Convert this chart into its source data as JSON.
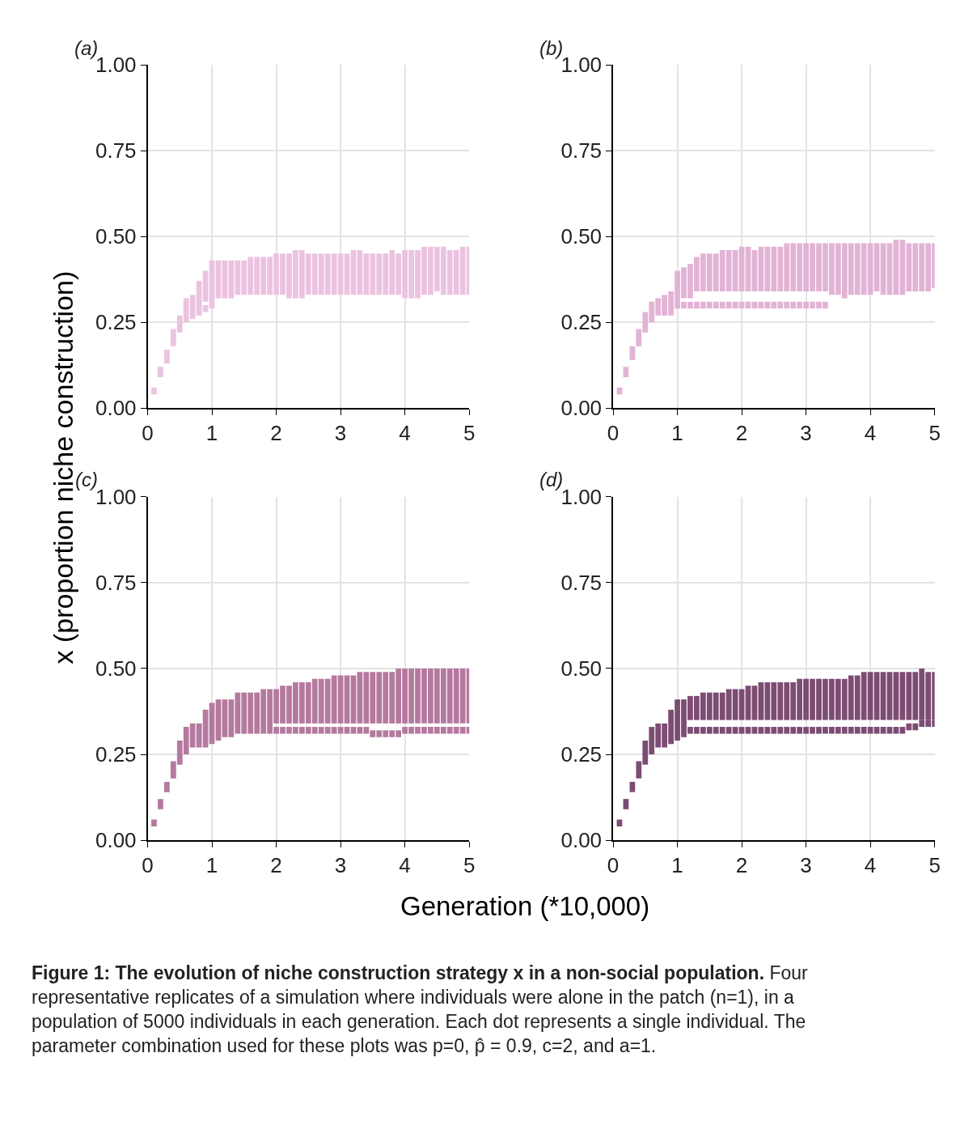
{
  "chart_data": [
    {
      "type": "bar",
      "title": "(a)",
      "ylabel": "x (proportion niche construction)",
      "x": [
        0.1,
        0.2,
        0.3,
        0.4,
        0.5,
        0.6,
        0.7,
        0.8,
        0.9,
        1.0,
        1.1,
        1.2,
        1.3,
        1.4,
        1.5,
        1.6,
        1.7,
        1.8,
        1.9,
        2.0,
        2.1,
        2.2,
        2.3,
        2.4,
        2.5,
        2.6,
        2.7,
        2.8,
        2.9,
        3.0,
        3.1,
        3.2,
        3.3,
        3.4,
        3.5,
        3.6,
        3.7,
        3.8,
        3.9,
        4.0,
        4.1,
        4.2,
        4.3,
        4.4,
        4.5,
        4.6,
        4.7,
        4.8,
        4.9,
        5.0
      ],
      "xlim": [
        0,
        5
      ],
      "xticks": [
        0,
        1,
        2,
        3,
        4,
        5
      ],
      "ylim": [
        0,
        1
      ],
      "yticks": [
        {
          "value": 0,
          "label": "0.00"
        },
        {
          "value": 0.25,
          "label": "0.25"
        },
        {
          "value": 0.5,
          "label": "0.50"
        },
        {
          "value": 0.75,
          "label": "0.75"
        },
        {
          "value": 1,
          "label": "1.00"
        }
      ],
      "grid": true,
      "series": [
        {
          "color": "#ebc3e0",
          "base": [
            0.04,
            0.09,
            0.13,
            0.18,
            0.22,
            0.25,
            0.26,
            0.27,
            0.31,
            0.31,
            0.32,
            0.32,
            0.32,
            0.33,
            0.33,
            0.33,
            0.33,
            0.33,
            0.33,
            0.33,
            0.33,
            0.32,
            0.32,
            0.32,
            0.33,
            0.33,
            0.33,
            0.33,
            0.33,
            0.33,
            0.33,
            0.33,
            0.33,
            0.33,
            0.33,
            0.33,
            0.33,
            0.33,
            0.33,
            0.32,
            0.32,
            0.32,
            0.33,
            0.33,
            0.34,
            0.33,
            0.33,
            0.33,
            0.33,
            0.33
          ],
          "values": [
            0.02,
            0.03,
            0.04,
            0.05,
            0.05,
            0.07,
            0.07,
            0.1,
            0.09,
            0.12,
            0.11,
            0.11,
            0.11,
            0.1,
            0.1,
            0.11,
            0.11,
            0.11,
            0.11,
            0.12,
            0.12,
            0.13,
            0.14,
            0.14,
            0.12,
            0.12,
            0.12,
            0.12,
            0.12,
            0.12,
            0.12,
            0.13,
            0.13,
            0.12,
            0.12,
            0.12,
            0.12,
            0.13,
            0.12,
            0.14,
            0.14,
            0.14,
            0.14,
            0.14,
            0.13,
            0.14,
            0.13,
            0.13,
            0.14,
            0.14
          ]
        },
        {
          "color": "#ebc3e0",
          "base": [
            null,
            null,
            null,
            null,
            null,
            null,
            null,
            null,
            0.28,
            0.29,
            null,
            null,
            null,
            null,
            null,
            null,
            null,
            null,
            null,
            null,
            null,
            null,
            null,
            null,
            null,
            null,
            null,
            null,
            null,
            null,
            null,
            null,
            null,
            null,
            null,
            null,
            null,
            null,
            null,
            null,
            null,
            null,
            null,
            null,
            null,
            null,
            null,
            null,
            null,
            null
          ],
          "values": [
            null,
            null,
            null,
            null,
            null,
            null,
            null,
            null,
            0.02,
            0.02,
            null,
            null,
            null,
            null,
            null,
            null,
            null,
            null,
            null,
            null,
            null,
            null,
            null,
            null,
            null,
            null,
            null,
            null,
            null,
            null,
            null,
            null,
            null,
            null,
            null,
            null,
            null,
            null,
            null,
            null,
            null,
            null,
            null,
            null,
            null,
            null,
            null,
            null,
            null,
            null
          ]
        }
      ]
    },
    {
      "type": "bar",
      "title": "(b)",
      "x": [
        0.1,
        0.2,
        0.3,
        0.4,
        0.5,
        0.6,
        0.7,
        0.8,
        0.9,
        1.0,
        1.1,
        1.2,
        1.3,
        1.4,
        1.5,
        1.6,
        1.7,
        1.8,
        1.9,
        2.0,
        2.1,
        2.2,
        2.3,
        2.4,
        2.5,
        2.6,
        2.7,
        2.8,
        2.9,
        3.0,
        3.1,
        3.2,
        3.3,
        3.4,
        3.5,
        3.6,
        3.7,
        3.8,
        3.9,
        4.0,
        4.1,
        4.2,
        4.3,
        4.4,
        4.5,
        4.6,
        4.7,
        4.8,
        4.9,
        5.0
      ],
      "xlim": [
        0,
        5
      ],
      "xticks": [
        0,
        1,
        2,
        3,
        4,
        5
      ],
      "ylim": [
        0,
        1
      ],
      "yticks": [
        {
          "value": 0,
          "label": "0.00"
        },
        {
          "value": 0.25,
          "label": "0.25"
        },
        {
          "value": 0.5,
          "label": "0.50"
        },
        {
          "value": 0.75,
          "label": "0.75"
        },
        {
          "value": 1,
          "label": "1.00"
        }
      ],
      "grid": true,
      "series": [
        {
          "color": "#e2b3d5",
          "base": [
            0.04,
            0.09,
            0.14,
            0.18,
            0.22,
            0.25,
            0.27,
            0.27,
            0.27,
            0.29,
            0.32,
            0.32,
            0.34,
            0.34,
            0.34,
            0.34,
            0.34,
            0.34,
            0.34,
            0.34,
            0.34,
            0.34,
            0.34,
            0.34,
            0.34,
            0.34,
            0.34,
            0.34,
            0.34,
            0.34,
            0.34,
            0.34,
            0.34,
            0.33,
            0.33,
            0.32,
            0.33,
            0.33,
            0.33,
            0.33,
            0.34,
            0.33,
            0.33,
            0.33,
            0.33,
            0.34,
            0.34,
            0.34,
            0.34,
            0.35
          ],
          "values": [
            0.02,
            0.03,
            0.04,
            0.05,
            0.06,
            0.06,
            0.05,
            0.06,
            0.07,
            0.11,
            0.09,
            0.1,
            0.1,
            0.11,
            0.11,
            0.11,
            0.12,
            0.12,
            0.12,
            0.13,
            0.13,
            0.12,
            0.13,
            0.13,
            0.13,
            0.13,
            0.14,
            0.14,
            0.14,
            0.14,
            0.14,
            0.14,
            0.14,
            0.15,
            0.15,
            0.16,
            0.15,
            0.15,
            0.15,
            0.15,
            0.14,
            0.15,
            0.15,
            0.16,
            0.16,
            0.14,
            0.14,
            0.14,
            0.14,
            0.13
          ]
        },
        {
          "color": "#e2b3d5",
          "base": [
            null,
            null,
            null,
            null,
            null,
            null,
            null,
            null,
            null,
            null,
            0.29,
            0.29,
            0.29,
            0.29,
            0.29,
            0.29,
            0.29,
            0.29,
            0.29,
            0.29,
            0.29,
            0.29,
            0.29,
            0.29,
            0.29,
            0.29,
            0.29,
            0.29,
            0.29,
            0.29,
            0.29,
            0.29,
            0.29,
            null,
            null,
            null,
            null,
            null,
            null,
            null,
            null,
            null,
            null,
            null,
            null,
            null,
            null,
            null,
            null,
            null
          ],
          "values": [
            null,
            null,
            null,
            null,
            null,
            null,
            null,
            null,
            null,
            null,
            0.02,
            0.02,
            0.02,
            0.02,
            0.02,
            0.02,
            0.02,
            0.02,
            0.02,
            0.02,
            0.02,
            0.02,
            0.02,
            0.02,
            0.02,
            0.02,
            0.02,
            0.02,
            0.02,
            0.02,
            0.02,
            0.02,
            0.02,
            null,
            null,
            null,
            null,
            null,
            null,
            null,
            null,
            null,
            null,
            null,
            null,
            null,
            null,
            null,
            null,
            null
          ]
        }
      ]
    },
    {
      "type": "bar",
      "title": "(c)",
      "xlabel": "Generation (*10,000)",
      "x": [
        0.1,
        0.2,
        0.3,
        0.4,
        0.5,
        0.6,
        0.7,
        0.8,
        0.9,
        1.0,
        1.1,
        1.2,
        1.3,
        1.4,
        1.5,
        1.6,
        1.7,
        1.8,
        1.9,
        2.0,
        2.1,
        2.2,
        2.3,
        2.4,
        2.5,
        2.6,
        2.7,
        2.8,
        2.9,
        3.0,
        3.1,
        3.2,
        3.3,
        3.4,
        3.5,
        3.6,
        3.7,
        3.8,
        3.9,
        4.0,
        4.1,
        4.2,
        4.3,
        4.4,
        4.5,
        4.6,
        4.7,
        4.8,
        4.9,
        5.0
      ],
      "xlim": [
        0,
        5
      ],
      "xticks": [
        0,
        1,
        2,
        3,
        4,
        5
      ],
      "ylim": [
        0,
        1
      ],
      "yticks": [
        {
          "value": 0,
          "label": "0.00"
        },
        {
          "value": 0.25,
          "label": "0.25"
        },
        {
          "value": 0.5,
          "label": "0.50"
        },
        {
          "value": 0.75,
          "label": "0.75"
        },
        {
          "value": 1,
          "label": "1.00"
        }
      ],
      "grid": true,
      "series": [
        {
          "color": "#b5799f",
          "base": [
            0.04,
            0.09,
            0.14,
            0.18,
            0.22,
            0.25,
            0.27,
            0.27,
            0.27,
            0.28,
            0.29,
            0.3,
            0.3,
            0.31,
            0.31,
            0.31,
            0.31,
            0.31,
            0.33,
            0.34,
            0.34,
            0.34,
            0.34,
            0.34,
            0.34,
            0.34,
            0.34,
            0.34,
            0.34,
            0.34,
            0.34,
            0.34,
            0.34,
            0.34,
            0.34,
            0.34,
            0.34,
            0.34,
            0.34,
            0.34,
            0.34,
            0.34,
            0.34,
            0.34,
            0.34,
            0.34,
            0.34,
            0.34,
            0.34,
            0.34
          ],
          "values": [
            0.02,
            0.03,
            0.03,
            0.05,
            0.07,
            0.08,
            0.07,
            0.07,
            0.11,
            0.12,
            0.12,
            0.11,
            0.11,
            0.12,
            0.12,
            0.12,
            0.12,
            0.13,
            0.11,
            0.1,
            0.11,
            0.11,
            0.12,
            0.12,
            0.12,
            0.13,
            0.13,
            0.13,
            0.14,
            0.14,
            0.14,
            0.14,
            0.15,
            0.15,
            0.15,
            0.15,
            0.15,
            0.15,
            0.16,
            0.16,
            0.16,
            0.16,
            0.16,
            0.16,
            0.16,
            0.16,
            0.16,
            0.16,
            0.16,
            0.16
          ]
        },
        {
          "color": "#b5799f",
          "base": [
            null,
            null,
            null,
            null,
            null,
            null,
            null,
            null,
            null,
            null,
            null,
            null,
            null,
            null,
            null,
            null,
            null,
            null,
            0.31,
            0.31,
            0.31,
            0.31,
            0.31,
            0.31,
            0.31,
            0.31,
            0.31,
            0.31,
            0.31,
            0.31,
            0.31,
            0.31,
            0.31,
            0.31,
            0.3,
            0.3,
            0.3,
            0.3,
            0.3,
            0.31,
            0.31,
            0.31,
            0.31,
            0.31,
            0.31,
            0.31,
            0.31,
            0.31,
            0.31,
            0.31
          ],
          "values": [
            null,
            null,
            null,
            null,
            null,
            null,
            null,
            null,
            null,
            null,
            null,
            null,
            null,
            null,
            null,
            null,
            null,
            null,
            0.02,
            0.02,
            0.02,
            0.02,
            0.02,
            0.02,
            0.02,
            0.02,
            0.02,
            0.02,
            0.02,
            0.02,
            0.02,
            0.02,
            0.02,
            0.02,
            0.02,
            0.02,
            0.02,
            0.02,
            0.02,
            0.02,
            0.02,
            0.02,
            0.02,
            0.02,
            0.02,
            0.02,
            0.02,
            0.02,
            0.02,
            0.02
          ]
        }
      ]
    },
    {
      "type": "bar",
      "title": "(d)",
      "x": [
        0.1,
        0.2,
        0.3,
        0.4,
        0.5,
        0.6,
        0.7,
        0.8,
        0.9,
        1.0,
        1.1,
        1.2,
        1.3,
        1.4,
        1.5,
        1.6,
        1.7,
        1.8,
        1.9,
        2.0,
        2.1,
        2.2,
        2.3,
        2.4,
        2.5,
        2.6,
        2.7,
        2.8,
        2.9,
        3.0,
        3.1,
        3.2,
        3.3,
        3.4,
        3.5,
        3.6,
        3.7,
        3.8,
        3.9,
        4.0,
        4.1,
        4.2,
        4.3,
        4.4,
        4.5,
        4.6,
        4.7,
        4.8,
        4.9,
        5.0
      ],
      "xlim": [
        0,
        5
      ],
      "xticks": [
        0,
        1,
        2,
        3,
        4,
        5
      ],
      "ylim": [
        0,
        1
      ],
      "yticks": [
        {
          "value": 0,
          "label": "0.00"
        },
        {
          "value": 0.25,
          "label": "0.25"
        },
        {
          "value": 0.5,
          "label": "0.50"
        },
        {
          "value": 0.75,
          "label": "0.75"
        },
        {
          "value": 1,
          "label": "1.00"
        }
      ],
      "grid": true,
      "annotations": [
        "Figure 1: The evolution of niche construction strategy x in a non-social population.",
        "Four representative replicates of a simulation where individuals were alone in the patch (n=1), in a population of 5000 individuals in each generation. Each dot represents a single individual. The parameter combination used for these plots was p=0, p̂ = 0.9, c=2, and a=1."
      ],
      "series": [
        {
          "color": "#7d4c73",
          "base": [
            0.04,
            0.09,
            0.14,
            0.18,
            0.22,
            0.25,
            0.27,
            0.27,
            0.28,
            0.29,
            0.3,
            0.35,
            0.35,
            0.35,
            0.35,
            0.35,
            0.35,
            0.35,
            0.35,
            0.35,
            0.35,
            0.35,
            0.35,
            0.35,
            0.35,
            0.35,
            0.35,
            0.35,
            0.35,
            0.35,
            0.35,
            0.35,
            0.35,
            0.35,
            0.35,
            0.35,
            0.35,
            0.35,
            0.35,
            0.35,
            0.35,
            0.35,
            0.35,
            0.35,
            0.35,
            0.35,
            0.35,
            0.35,
            0.35,
            0.35
          ],
          "values": [
            0.02,
            0.03,
            0.03,
            0.05,
            0.07,
            0.08,
            0.07,
            0.07,
            0.1,
            0.12,
            0.11,
            0.07,
            0.07,
            0.08,
            0.08,
            0.08,
            0.08,
            0.09,
            0.09,
            0.09,
            0.1,
            0.1,
            0.11,
            0.11,
            0.11,
            0.11,
            0.11,
            0.11,
            0.12,
            0.12,
            0.12,
            0.12,
            0.12,
            0.12,
            0.12,
            0.12,
            0.13,
            0.13,
            0.14,
            0.14,
            0.14,
            0.14,
            0.14,
            0.14,
            0.14,
            0.14,
            0.14,
            0.15,
            0.14,
            0.14
          ]
        },
        {
          "color": "#7d4c73",
          "base": [
            null,
            null,
            null,
            null,
            null,
            null,
            null,
            null,
            null,
            null,
            null,
            0.31,
            0.31,
            0.31,
            0.31,
            0.31,
            0.31,
            0.31,
            0.31,
            0.31,
            0.31,
            0.31,
            0.31,
            0.31,
            0.31,
            0.31,
            0.31,
            0.31,
            0.31,
            0.31,
            0.31,
            0.31,
            0.31,
            0.31,
            0.31,
            0.31,
            0.31,
            0.31,
            0.31,
            0.31,
            0.31,
            0.31,
            0.31,
            0.31,
            0.31,
            0.32,
            0.32,
            0.33,
            0.33,
            0.33
          ],
          "values": [
            null,
            null,
            null,
            null,
            null,
            null,
            null,
            null,
            null,
            null,
            null,
            0.02,
            0.02,
            0.02,
            0.02,
            0.02,
            0.02,
            0.02,
            0.02,
            0.02,
            0.02,
            0.02,
            0.02,
            0.02,
            0.02,
            0.02,
            0.02,
            0.02,
            0.02,
            0.02,
            0.02,
            0.02,
            0.02,
            0.02,
            0.02,
            0.02,
            0.02,
            0.02,
            0.02,
            0.02,
            0.02,
            0.02,
            0.02,
            0.02,
            0.02,
            0.02,
            0.02,
            0.02,
            0.02,
            0.02
          ]
        }
      ]
    }
  ]
}
